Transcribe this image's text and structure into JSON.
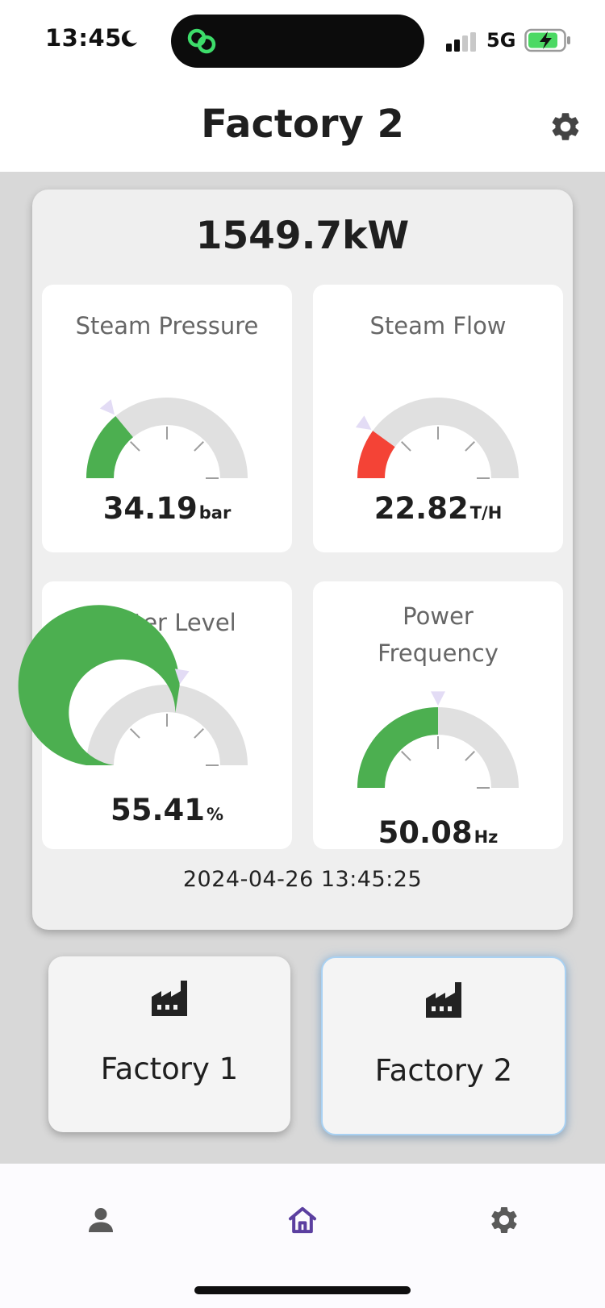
{
  "status_bar": {
    "time": "13:45",
    "network": "5G"
  },
  "header": {
    "title": "Factory 2",
    "settings_icon": "gear-icon"
  },
  "summary": {
    "total_power": "1549.7kW",
    "timestamp": "2024-04-26 13:45:25",
    "gauges": [
      {
        "label": "Steam Pressure",
        "value": "34.19",
        "unit": "bar",
        "fraction": 0.28,
        "color": "#4caf50"
      },
      {
        "label": "Steam Flow",
        "value": "22.82",
        "unit": "T/H",
        "fraction": 0.2,
        "color": "#f44336"
      },
      {
        "label": "Water Level",
        "value": "55.41",
        "unit": "%",
        "fraction": 0.55,
        "color": "#4caf50"
      },
      {
        "label": "Power Frequency",
        "value": "50.08",
        "unit": "Hz",
        "fraction": 0.5,
        "color": "#4caf50"
      }
    ]
  },
  "factories": [
    {
      "label": "Factory 1",
      "selected": false,
      "icon": "factory-icon"
    },
    {
      "label": "Factory 2",
      "selected": true,
      "icon": "factory-icon"
    }
  ],
  "bottom_nav": [
    {
      "icon": "person-icon",
      "active": false
    },
    {
      "icon": "home-icon",
      "active": true
    },
    {
      "icon": "gear-icon",
      "active": false
    }
  ],
  "colors": {
    "track": "#e0e0e0",
    "pointer": "#e3dcf5",
    "nav_active": "#5b3fa0",
    "nav_inactive": "#5a5a5a"
  }
}
